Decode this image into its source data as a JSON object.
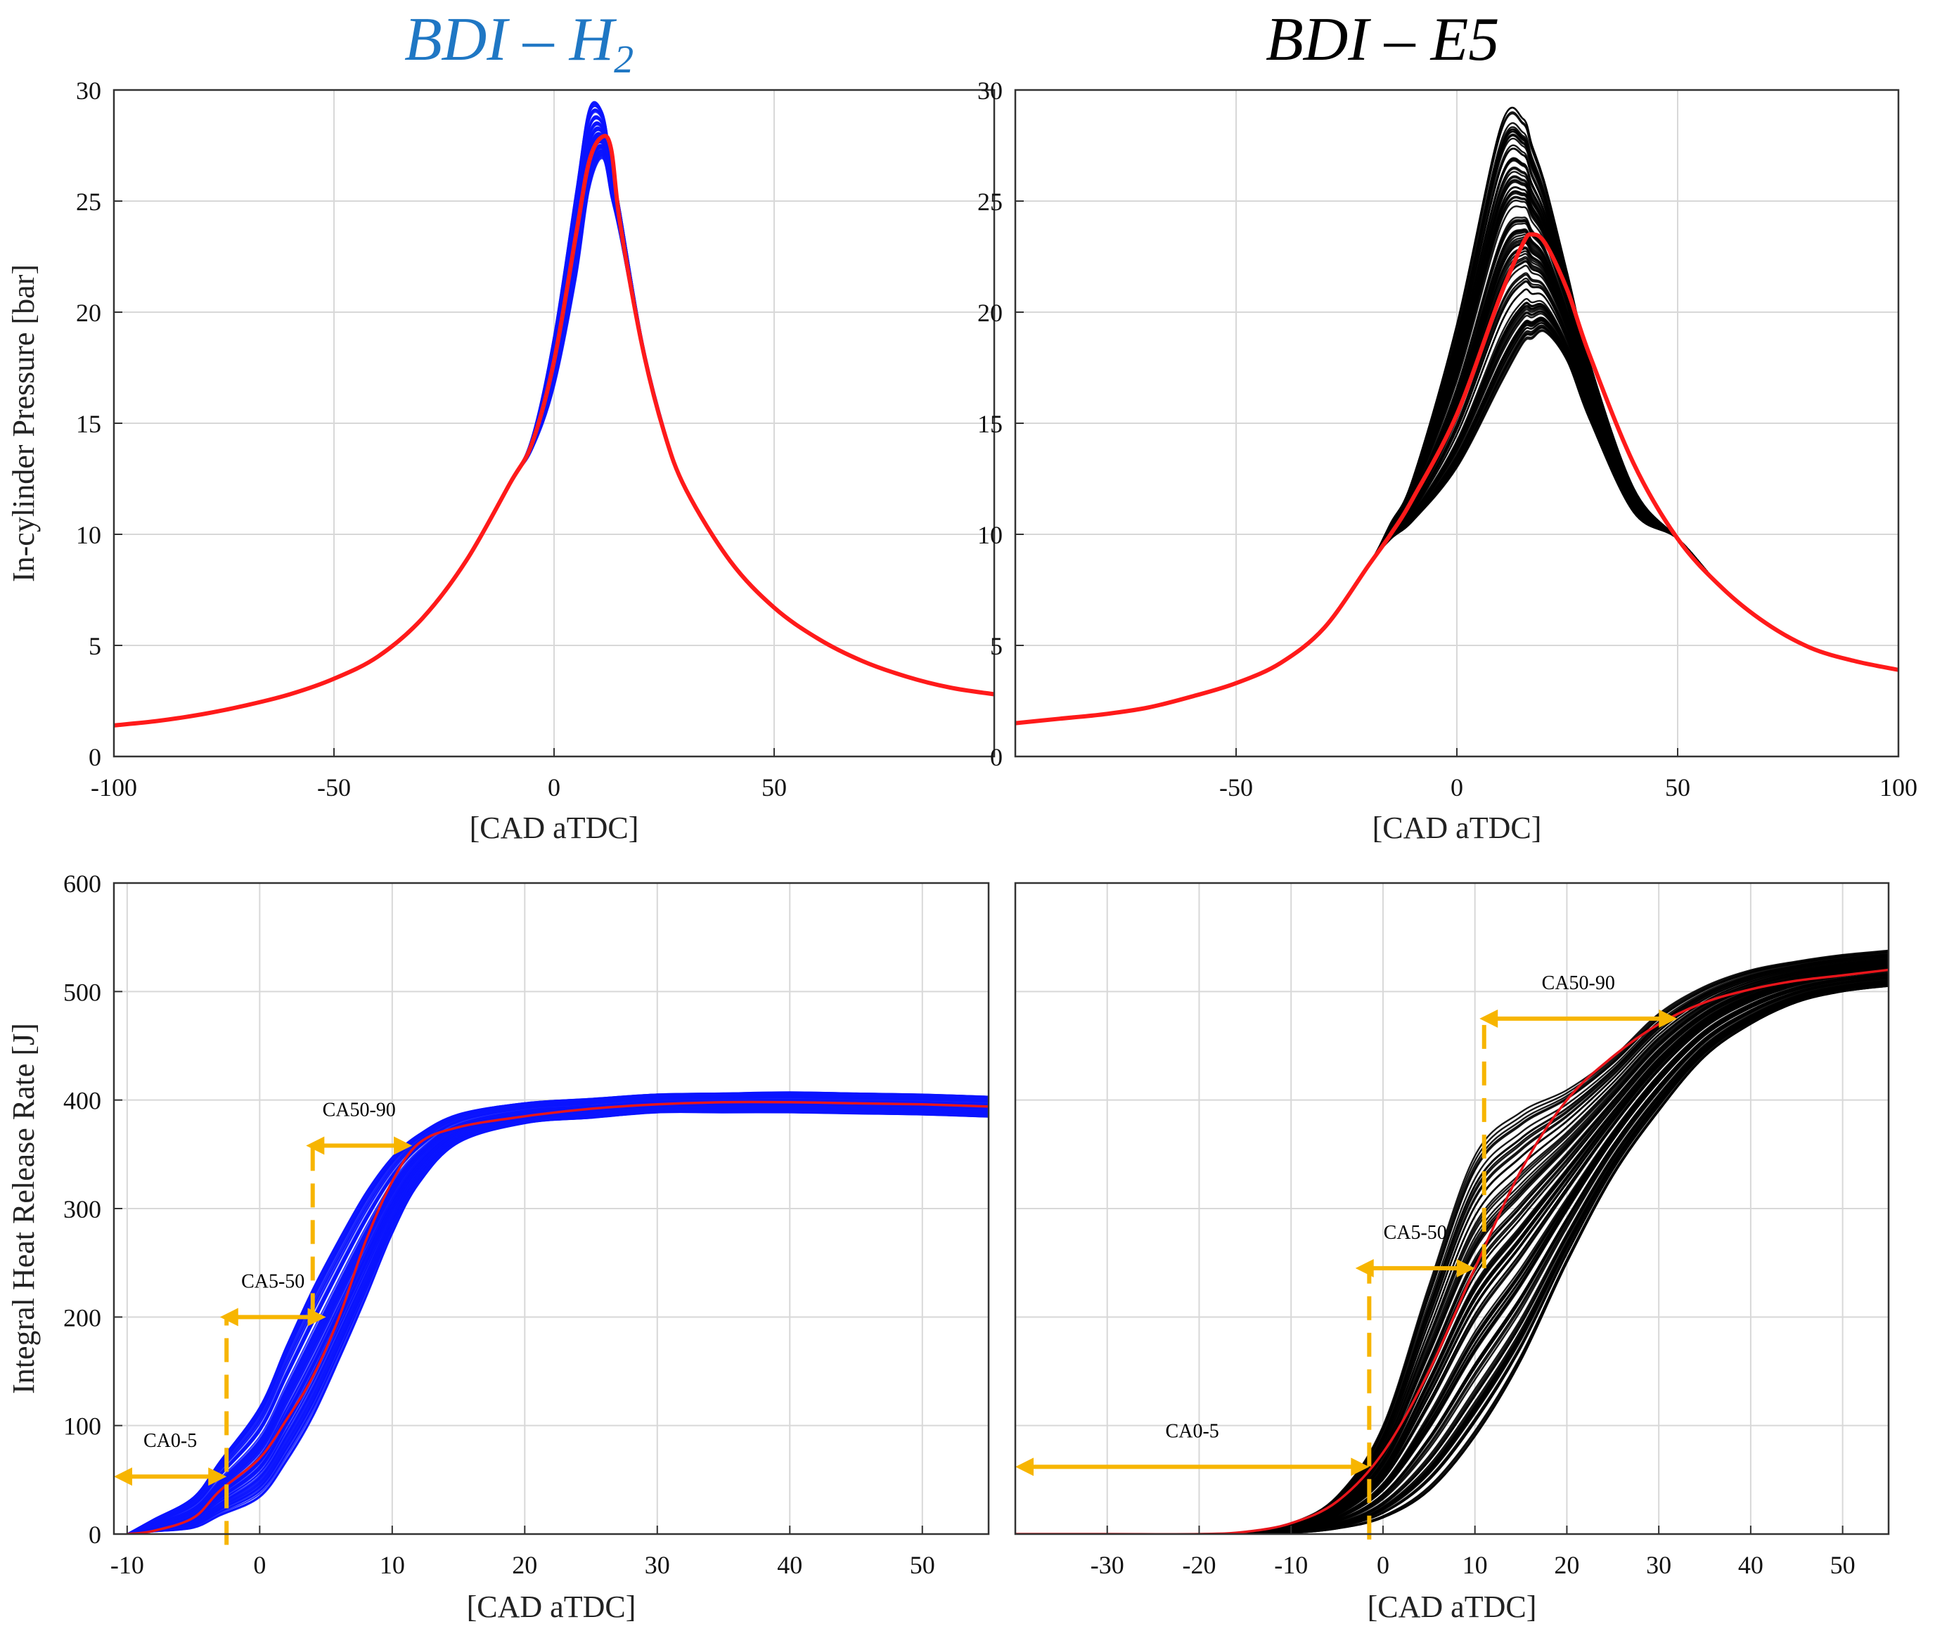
{
  "titles": {
    "left_main": "BDI – H",
    "left_sub": "2",
    "right": "BDI – E5"
  },
  "colors": {
    "h2_cycles": "#0a14ff",
    "e5_cycles": "#000000",
    "mean": "#ff1a1a",
    "annotation": "#f7b500",
    "grid": "#d8d8d8",
    "axes": "#333333",
    "title_left": "#1f77c4"
  },
  "chart_data": [
    {
      "id": "pressure-h2",
      "type": "line",
      "title": "",
      "xlabel": "[CAD aTDC]",
      "ylabel": "In-cylinder Pressure [bar]",
      "xlim": [
        -100,
        100
      ],
      "ylim": [
        0,
        30
      ],
      "xticks": [
        -100,
        -50,
        0,
        50
      ],
      "yticks": [
        0,
        5,
        10,
        15,
        20,
        25,
        30
      ],
      "grid": true,
      "cycle_count_shown": 100,
      "cycle_color": "#0a14ff",
      "cycle_envelope": {
        "x": [
          -10,
          -5,
          0,
          5,
          8,
          11,
          15,
          20,
          25
        ],
        "y_min": [
          12.3,
          13.8,
          16.6,
          21.5,
          25.5,
          26.9,
          23.4,
          18.3,
          14.5
        ],
        "y_max": [
          12.3,
          14.4,
          19.0,
          25.5,
          29.2,
          29.0,
          24.6,
          18.8,
          14.8
        ]
      },
      "series": [
        {
          "name": "",
          "color": "#ff1a1a",
          "x": [
            -100,
            -90,
            -80,
            -70,
            -60,
            -50,
            -40,
            -30,
            -20,
            -10,
            -5,
            0,
            5,
            8,
            11,
            13,
            15,
            20,
            25,
            30,
            40,
            50,
            60,
            70,
            80,
            90,
            100
          ],
          "y": [
            1.4,
            1.6,
            1.9,
            2.3,
            2.8,
            3.5,
            4.5,
            6.2,
            8.8,
            12.3,
            14.1,
            17.8,
            23.5,
            26.8,
            27.9,
            27.3,
            24.0,
            18.5,
            14.6,
            12.0,
            8.8,
            6.7,
            5.3,
            4.3,
            3.6,
            3.1,
            2.8
          ]
        }
      ]
    },
    {
      "id": "pressure-e5",
      "type": "line",
      "title": "",
      "xlabel": "[CAD aTDC]",
      "ylabel": "",
      "xlim": [
        -100,
        100
      ],
      "ylim": [
        0,
        30
      ],
      "xticks": [
        -50,
        0,
        50,
        100
      ],
      "yticks": [
        0,
        5,
        10,
        15,
        20,
        25,
        30
      ],
      "grid": true,
      "cycle_count_shown": 100,
      "cycle_color": "#000000",
      "cycle_envelope": {
        "x": [
          -18,
          -10,
          0,
          10,
          15,
          20,
          25,
          30,
          40
        ],
        "y_min": [
          9.3,
          10.6,
          13.0,
          16.8,
          18.6,
          19.1,
          17.8,
          15.2,
          11.0
        ],
        "y_max": [
          9.3,
          12.5,
          19.5,
          28.5,
          28.8,
          25.8,
          21.8,
          17.8,
          12.1
        ]
      },
      "series": [
        {
          "name": "",
          "color": "#ff1a1a",
          "x": [
            -100,
            -90,
            -80,
            -70,
            -60,
            -50,
            -40,
            -30,
            -20,
            -15,
            -10,
            0,
            10,
            15,
            17,
            20,
            25,
            30,
            40,
            50,
            60,
            70,
            80,
            90,
            100
          ],
          "y": [
            1.5,
            1.7,
            1.9,
            2.2,
            2.7,
            3.3,
            4.2,
            5.8,
            8.6,
            10.0,
            11.6,
            15.4,
            20.8,
            23.1,
            23.5,
            23.1,
            21.0,
            18.1,
            13.2,
            9.8,
            7.6,
            6.0,
            4.9,
            4.3,
            3.9
          ]
        }
      ]
    },
    {
      "id": "hrr-h2",
      "type": "line",
      "title": "",
      "xlabel": "[CAD aTDC]",
      "ylabel": "Integral Heat Release Rate [J]",
      "xlim": [
        -11,
        55
      ],
      "ylim": [
        0,
        600
      ],
      "xticks": [
        -10,
        0,
        10,
        20,
        30,
        40,
        50
      ],
      "yticks": [
        0,
        100,
        200,
        300,
        400,
        500,
        600
      ],
      "grid": true,
      "cycle_count_shown": 100,
      "cycle_color": "#0a14ff",
      "cycle_envelope": {
        "x": [
          -10,
          -5,
          0,
          3,
          5,
          8,
          10,
          13,
          15,
          20,
          30,
          40,
          50,
          55
        ],
        "y_min": [
          0,
          5,
          32,
          80,
          130,
          215,
          275,
          345,
          360,
          378,
          388,
          388,
          386,
          384
        ],
        "y_max": [
          0,
          35,
          120,
          205,
          255,
          318,
          350,
          380,
          388,
          398,
          406,
          408,
          406,
          404
        ]
      },
      "series": [
        {
          "name": "",
          "color": "#e8151b",
          "x": [
            -10,
            -8,
            -5,
            -3,
            0,
            2,
            4,
            6,
            8,
            10,
            12,
            15,
            20,
            25,
            30,
            35,
            40,
            45,
            50,
            55
          ],
          "y": [
            0,
            3,
            15,
            40,
            70,
            105,
            145,
            200,
            270,
            325,
            360,
            375,
            385,
            392,
            396,
            398,
            398,
            397,
            396,
            394
          ]
        }
      ],
      "annotations": [
        {
          "label": "CA0-5",
          "from": -11,
          "to": -2.5,
          "y": 53,
          "dashed_x": -2.5,
          "dashed_from": -10,
          "dashed_to": 200
        },
        {
          "label": "CA5-50",
          "from": -3,
          "to": 5,
          "y": 200,
          "dashed_x": 4,
          "dashed_from": 200,
          "dashed_to": 360
        },
        {
          "label": "CA50-90",
          "from": 3.5,
          "to": 11.5,
          "y": 358
        }
      ]
    },
    {
      "id": "hrr-e5",
      "type": "line",
      "title": "",
      "xlabel": "[CAD aTDC]",
      "ylabel": "",
      "xlim": [
        -40,
        55
      ],
      "ylim": [
        0,
        600
      ],
      "xticks": [
        -30,
        -20,
        -10,
        0,
        10,
        20,
        30,
        40,
        50
      ],
      "yticks": [],
      "grid": true,
      "cycle_count_shown": 100,
      "cycle_color": "#000000",
      "cycle_envelope": {
        "x": [
          -20,
          -15,
          -10,
          -5,
          0,
          5,
          10,
          15,
          20,
          25,
          30,
          35,
          40,
          45,
          50,
          55
        ],
        "y_min": [
          0,
          0,
          1,
          5,
          15,
          40,
          90,
          160,
          250,
          330,
          390,
          440,
          470,
          490,
          500,
          505
        ],
        "y_max": [
          0,
          2,
          10,
          35,
          100,
          230,
          350,
          390,
          410,
          440,
          480,
          505,
          520,
          528,
          534,
          538
        ]
      },
      "series": [
        {
          "name": "",
          "color": "#e8151b",
          "x": [
            -40,
            -30,
            -20,
            -15,
            -10,
            -5,
            0,
            5,
            10,
            15,
            20,
            25,
            30,
            35,
            40,
            45,
            50,
            55
          ],
          "y": [
            0,
            0,
            0,
            2,
            10,
            30,
            75,
            150,
            245,
            335,
            400,
            440,
            470,
            490,
            502,
            510,
            515,
            520
          ]
        }
      ],
      "annotations": [
        {
          "label": "CA0-5",
          "from": -40,
          "to": -1.5,
          "y": 62,
          "dashed_x": -1.5,
          "dashed_from": -5,
          "dashed_to": 245
        },
        {
          "label": "CA5-50",
          "from": -3,
          "to": 10,
          "y": 245,
          "dashed_x": 11,
          "dashed_from": 245,
          "dashed_to": 475
        },
        {
          "label": "CA50-90",
          "from": 10.5,
          "to": 32,
          "y": 475
        }
      ]
    }
  ]
}
